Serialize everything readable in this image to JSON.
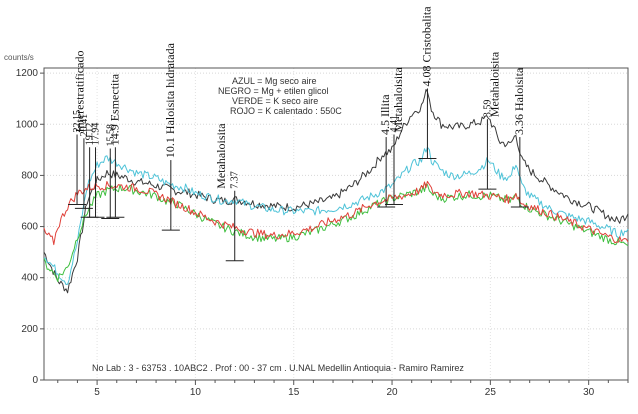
{
  "chart_data": {
    "type": "line",
    "ylabel": "counts/s",
    "xlim": [
      2.3,
      32
    ],
    "ylim": [
      0,
      1220
    ],
    "xticks": [
      5,
      10,
      15,
      20,
      25,
      30
    ],
    "yticks": [
      0,
      200,
      400,
      600,
      800,
      1000,
      1200
    ],
    "legend_placement": "top-center",
    "legend": [
      "AZUL = Mg seco aire",
      "NEGRO = Mg + etilen glicol",
      "VERDE = K seco aire",
      "ROJO = K calentado : 550C"
    ],
    "footer": "No  Lab : 3 - 63753 .  10ABC2 .  Prof : 00 - 37 cm .  U.NAL Medellin   Antioquia - Ramiro Ramirez",
    "series": [
      {
        "color": "#3a3a3a",
        "x": [
          2.3,
          3,
          3.5,
          4,
          4.5,
          5,
          5.5,
          6,
          6.5,
          7,
          7.5,
          8,
          8.5,
          9,
          9.5,
          10,
          10.5,
          11,
          11.5,
          12,
          12.5,
          13,
          14,
          15,
          16,
          17,
          18,
          19,
          19.5,
          20,
          20.5,
          21,
          21.5,
          21.8,
          22,
          22.5,
          23,
          23.5,
          24,
          24.5,
          24.9,
          25.5,
          26,
          26.3,
          26.6,
          27,
          28,
          29,
          30,
          31,
          31.5,
          32
        ],
        "y": [
          500,
          390,
          350,
          480,
          700,
          780,
          810,
          800,
          790,
          775,
          770,
          760,
          750,
          740,
          735,
          725,
          715,
          705,
          700,
          705,
          700,
          690,
          680,
          675,
          690,
          710,
          760,
          830,
          880,
          900,
          980,
          1040,
          1070,
          1140,
          1060,
          1000,
          990,
          990,
          1000,
          1010,
          1030,
          930,
          920,
          960,
          860,
          820,
          760,
          710,
          680,
          640,
          620,
          650
        ]
      },
      {
        "color": "#4fc3d8",
        "x": [
          2.3,
          3,
          3.5,
          4,
          4.5,
          5,
          5.5,
          6,
          6.5,
          7,
          7.5,
          8,
          8.5,
          9,
          9.5,
          10,
          10.5,
          11,
          11.5,
          12,
          12.5,
          13,
          14,
          15,
          16,
          17,
          18,
          19,
          19.5,
          20,
          20.5,
          21,
          21.5,
          21.8,
          22,
          22.5,
          23,
          23.5,
          24,
          24.5,
          24.9,
          25.5,
          26,
          26.3,
          26.6,
          27,
          28,
          29,
          30,
          31,
          31.5,
          32
        ],
        "y": [
          490,
          420,
          380,
          540,
          760,
          840,
          870,
          850,
          830,
          810,
          800,
          790,
          770,
          760,
          750,
          730,
          720,
          710,
          700,
          705,
          690,
          680,
          665,
          660,
          660,
          670,
          690,
          720,
          740,
          760,
          800,
          840,
          860,
          920,
          860,
          820,
          800,
          800,
          810,
          830,
          860,
          800,
          790,
          850,
          760,
          720,
          670,
          640,
          620,
          590,
          570,
          590
        ]
      },
      {
        "color": "#3fbf3f",
        "x": [
          2.3,
          3,
          3.5,
          4,
          4.5,
          5,
          5.5,
          6,
          6.5,
          7,
          7.5,
          8,
          8.5,
          9,
          9.5,
          10,
          11,
          12,
          13,
          14,
          15,
          16,
          17,
          18,
          19,
          20,
          21,
          21.5,
          21.8,
          22,
          22.5,
          23,
          23.5,
          24,
          24.5,
          25,
          25.5,
          26,
          26.3,
          26.6,
          27,
          28,
          29,
          30,
          31,
          32
        ],
        "y": [
          460,
          400,
          440,
          560,
          660,
          720,
          740,
          750,
          750,
          740,
          730,
          720,
          700,
          690,
          670,
          650,
          610,
          580,
          560,
          550,
          560,
          580,
          610,
          640,
          680,
          710,
          730,
          740,
          755,
          730,
          710,
          715,
          720,
          725,
          720,
          720,
          710,
          700,
          720,
          690,
          670,
          640,
          610,
          580,
          550,
          525
        ]
      },
      {
        "color": "#e0413a",
        "x": [
          2.3,
          2.8,
          3,
          3.5,
          4,
          4.5,
          5,
          5.5,
          6,
          6.5,
          7,
          7.5,
          8,
          8.5,
          9,
          9.5,
          10,
          11,
          12,
          13,
          14,
          15,
          16,
          17,
          18,
          19,
          20,
          21,
          21.5,
          21.8,
          22,
          22.5,
          23,
          23.5,
          24,
          24.5,
          25,
          25.5,
          26,
          26.3,
          26.6,
          27,
          28,
          29,
          30,
          31,
          32
        ],
        "y": [
          580,
          540,
          600,
          680,
          730,
          750,
          760,
          760,
          760,
          755,
          750,
          740,
          725,
          710,
          690,
          675,
          655,
          620,
          595,
          575,
          565,
          575,
          595,
          625,
          650,
          690,
          710,
          730,
          745,
          770,
          740,
          725,
          725,
          730,
          730,
          725,
          720,
          715,
          705,
          730,
          690,
          680,
          650,
          620,
          590,
          560,
          540
        ]
      }
    ],
    "peaks": [
      {
        "label": "22.15",
        "x": 3.98,
        "y": 960
      },
      {
        "label": "20.41",
        "x": 4.33,
        "y": 945
      },
      {
        "label": "19.12",
        "x": 4.62,
        "y": 910
      },
      {
        "label": "17.94",
        "x": 4.92,
        "y": 910
      },
      {
        "label": "15.58",
        "x": 5.67,
        "y": 905
      },
      {
        "label": "14.9 Esmectita",
        "x": 5.93,
        "y": 910
      },
      {
        "label": "Interestratificado",
        "x": 4.15,
        "y": 960
      },
      {
        "label": "10.1 Haloisita hidratada",
        "x": 8.75,
        "y": 860
      },
      {
        "label": "7.37",
        "x": 12.0,
        "y": 740
      },
      {
        "label": "Metahaloisita",
        "x": 11.35,
        "y": 740
      },
      {
        "label": "4.5 Illita",
        "x": 19.7,
        "y": 950
      },
      {
        "label": "4.41",
        "x": 20.1,
        "y": 960
      },
      {
        "label": "Metahaloisita",
        "x": 20.35,
        "y": 960
      },
      {
        "label": "4.08 Cristobalita",
        "x": 21.8,
        "y": 1140
      },
      {
        "label": "3.59",
        "x": 24.85,
        "y": 1020
      },
      {
        "label": "Metahaloisita",
        "x": 25.25,
        "y": 1020
      },
      {
        "label": "3.36 Haloisita",
        "x": 26.5,
        "y": 950
      }
    ]
  }
}
